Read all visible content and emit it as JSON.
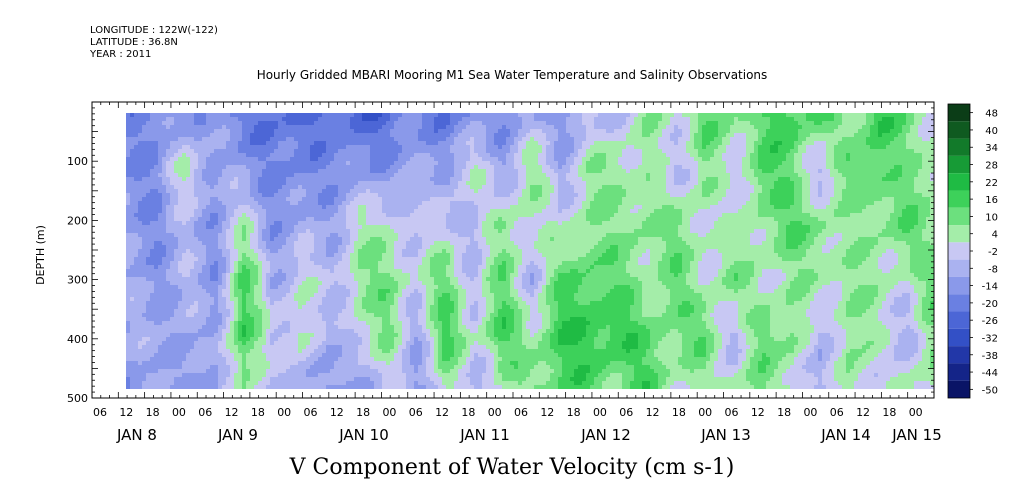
{
  "header": {
    "longitude": "LONGITUDE : 122W(-122)",
    "latitude": "LATITUDE : 36.8N",
    "year": "YEAR : 2011"
  },
  "chart_data": {
    "type": "heatmap",
    "title": "Hourly Gridded MBARI Mooring M1 Sea Water Temperature and Salinity Observations",
    "xlabel": "V Component of Water Velocity (cm s-1)",
    "ylabel": "DEPTH (m)",
    "ylim": [
      500,
      0
    ],
    "yticks": [
      100,
      200,
      300,
      400,
      500
    ],
    "xticks_hours": [
      "06",
      "12",
      "18",
      "00",
      "06",
      "12",
      "18",
      "00",
      "06",
      "12",
      "18",
      "00",
      "06",
      "12",
      "18",
      "00",
      "06",
      "12",
      "18",
      "00",
      "06",
      "12",
      "18",
      "00",
      "06",
      "12",
      "18",
      "00",
      "06",
      "12",
      "18",
      "00"
    ],
    "xdays": [
      "JAN  8",
      "JAN  9",
      "JAN 10",
      "JAN 11",
      "JAN 12",
      "JAN 13",
      "JAN 14",
      "JAN 15"
    ],
    "colorbar": {
      "labels": [
        "48",
        "40",
        "34",
        "28",
        "22",
        "16",
        "10",
        "4",
        "-2",
        "-8",
        "-14",
        "-20",
        "-26",
        "-32",
        "-38",
        "-44",
        "-50"
      ],
      "colors": [
        "#0b3d17",
        "#0f5a20",
        "#127a2a",
        "#179b36",
        "#1fbb44",
        "#3dd15a",
        "#6ce07e",
        "#a4eda9",
        "#c8c8f3",
        "#aab2f0",
        "#8a99ea",
        "#6a80e2",
        "#4c66d6",
        "#3350c6",
        "#2237a8",
        "#142488",
        "#0a1466"
      ]
    },
    "field_columns": [
      [
        -14,
        -12,
        -10,
        -8,
        -6,
        -10
      ],
      [
        -16,
        -14,
        -12,
        -10,
        -8,
        -10
      ],
      [
        -10,
        8,
        -6,
        -4,
        -6,
        -8
      ],
      [
        -12,
        -8,
        -10,
        -12,
        -10,
        -12
      ],
      [
        -18,
        -10,
        4,
        18,
        22,
        10
      ],
      [
        -20,
        -14,
        -10,
        -6,
        -2,
        -6
      ],
      [
        -22,
        -16,
        -8,
        4,
        8,
        -4
      ],
      [
        -18,
        -12,
        -8,
        -4,
        -10,
        -14
      ],
      [
        -24,
        -12,
        4,
        10,
        4,
        -8
      ],
      [
        -20,
        -10,
        6,
        12,
        10,
        -2
      ],
      [
        -16,
        -8,
        -4,
        2,
        -6,
        -10
      ],
      [
        -18,
        -6,
        2,
        14,
        18,
        6
      ],
      [
        -14,
        4,
        -6,
        -2,
        4,
        -6
      ],
      [
        -12,
        -8,
        10,
        14,
        18,
        4
      ],
      [
        -8,
        10,
        4,
        -4,
        8,
        12
      ],
      [
        -10,
        -6,
        2,
        14,
        20,
        16
      ],
      [
        -6,
        8,
        10,
        18,
        22,
        16
      ],
      [
        -2,
        10,
        8,
        14,
        20,
        10
      ],
      [
        8,
        6,
        12,
        6,
        16,
        18
      ],
      [
        4,
        -4,
        10,
        14,
        10,
        6
      ],
      [
        16,
        12,
        6,
        4,
        16,
        4
      ],
      [
        10,
        -4,
        2,
        12,
        -6,
        8
      ],
      [
        14,
        20,
        10,
        4,
        14,
        10
      ],
      [
        20,
        12,
        16,
        8,
        12,
        6
      ],
      [
        16,
        -4,
        12,
        6,
        -8,
        -10
      ],
      [
        6,
        14,
        4,
        10,
        12,
        14
      ],
      [
        22,
        18,
        10,
        6,
        4,
        -6
      ],
      [
        12,
        8,
        16,
        4,
        -4,
        8
      ],
      [
        4,
        10,
        6,
        14,
        10,
        6
      ]
    ]
  }
}
